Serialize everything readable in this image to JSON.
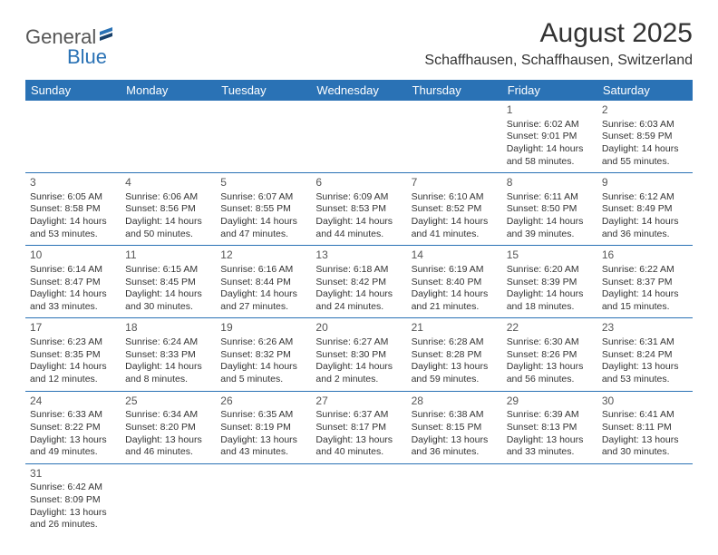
{
  "logo": {
    "text1": "General",
    "text2": "Blue"
  },
  "title": "August 2025",
  "subtitle": "Schaffhausen, Schaffhausen, Switzerland",
  "colors": {
    "header_bg": "#2a72b5",
    "header_text": "#ffffff",
    "border": "#2a72b5",
    "text": "#333333",
    "logo_accent": "#2a72b5",
    "logo_gray": "#555555",
    "background": "#ffffff"
  },
  "typography": {
    "title_fontsize": 30,
    "subtitle_fontsize": 16,
    "dayheader_fontsize": 13,
    "daynum_fontsize": 12,
    "cell_fontsize": 10.5
  },
  "day_headers": [
    "Sunday",
    "Monday",
    "Tuesday",
    "Wednesday",
    "Thursday",
    "Friday",
    "Saturday"
  ],
  "weeks": [
    [
      null,
      null,
      null,
      null,
      null,
      {
        "n": "1",
        "sr": "Sunrise: 6:02 AM",
        "ss": "Sunset: 9:01 PM",
        "dl": "Daylight: 14 hours and 58 minutes."
      },
      {
        "n": "2",
        "sr": "Sunrise: 6:03 AM",
        "ss": "Sunset: 8:59 PM",
        "dl": "Daylight: 14 hours and 55 minutes."
      }
    ],
    [
      {
        "n": "3",
        "sr": "Sunrise: 6:05 AM",
        "ss": "Sunset: 8:58 PM",
        "dl": "Daylight: 14 hours and 53 minutes."
      },
      {
        "n": "4",
        "sr": "Sunrise: 6:06 AM",
        "ss": "Sunset: 8:56 PM",
        "dl": "Daylight: 14 hours and 50 minutes."
      },
      {
        "n": "5",
        "sr": "Sunrise: 6:07 AM",
        "ss": "Sunset: 8:55 PM",
        "dl": "Daylight: 14 hours and 47 minutes."
      },
      {
        "n": "6",
        "sr": "Sunrise: 6:09 AM",
        "ss": "Sunset: 8:53 PM",
        "dl": "Daylight: 14 hours and 44 minutes."
      },
      {
        "n": "7",
        "sr": "Sunrise: 6:10 AM",
        "ss": "Sunset: 8:52 PM",
        "dl": "Daylight: 14 hours and 41 minutes."
      },
      {
        "n": "8",
        "sr": "Sunrise: 6:11 AM",
        "ss": "Sunset: 8:50 PM",
        "dl": "Daylight: 14 hours and 39 minutes."
      },
      {
        "n": "9",
        "sr": "Sunrise: 6:12 AM",
        "ss": "Sunset: 8:49 PM",
        "dl": "Daylight: 14 hours and 36 minutes."
      }
    ],
    [
      {
        "n": "10",
        "sr": "Sunrise: 6:14 AM",
        "ss": "Sunset: 8:47 PM",
        "dl": "Daylight: 14 hours and 33 minutes."
      },
      {
        "n": "11",
        "sr": "Sunrise: 6:15 AM",
        "ss": "Sunset: 8:45 PM",
        "dl": "Daylight: 14 hours and 30 minutes."
      },
      {
        "n": "12",
        "sr": "Sunrise: 6:16 AM",
        "ss": "Sunset: 8:44 PM",
        "dl": "Daylight: 14 hours and 27 minutes."
      },
      {
        "n": "13",
        "sr": "Sunrise: 6:18 AM",
        "ss": "Sunset: 8:42 PM",
        "dl": "Daylight: 14 hours and 24 minutes."
      },
      {
        "n": "14",
        "sr": "Sunrise: 6:19 AM",
        "ss": "Sunset: 8:40 PM",
        "dl": "Daylight: 14 hours and 21 minutes."
      },
      {
        "n": "15",
        "sr": "Sunrise: 6:20 AM",
        "ss": "Sunset: 8:39 PM",
        "dl": "Daylight: 14 hours and 18 minutes."
      },
      {
        "n": "16",
        "sr": "Sunrise: 6:22 AM",
        "ss": "Sunset: 8:37 PM",
        "dl": "Daylight: 14 hours and 15 minutes."
      }
    ],
    [
      {
        "n": "17",
        "sr": "Sunrise: 6:23 AM",
        "ss": "Sunset: 8:35 PM",
        "dl": "Daylight: 14 hours and 12 minutes."
      },
      {
        "n": "18",
        "sr": "Sunrise: 6:24 AM",
        "ss": "Sunset: 8:33 PM",
        "dl": "Daylight: 14 hours and 8 minutes."
      },
      {
        "n": "19",
        "sr": "Sunrise: 6:26 AM",
        "ss": "Sunset: 8:32 PM",
        "dl": "Daylight: 14 hours and 5 minutes."
      },
      {
        "n": "20",
        "sr": "Sunrise: 6:27 AM",
        "ss": "Sunset: 8:30 PM",
        "dl": "Daylight: 14 hours and 2 minutes."
      },
      {
        "n": "21",
        "sr": "Sunrise: 6:28 AM",
        "ss": "Sunset: 8:28 PM",
        "dl": "Daylight: 13 hours and 59 minutes."
      },
      {
        "n": "22",
        "sr": "Sunrise: 6:30 AM",
        "ss": "Sunset: 8:26 PM",
        "dl": "Daylight: 13 hours and 56 minutes."
      },
      {
        "n": "23",
        "sr": "Sunrise: 6:31 AM",
        "ss": "Sunset: 8:24 PM",
        "dl": "Daylight: 13 hours and 53 minutes."
      }
    ],
    [
      {
        "n": "24",
        "sr": "Sunrise: 6:33 AM",
        "ss": "Sunset: 8:22 PM",
        "dl": "Daylight: 13 hours and 49 minutes."
      },
      {
        "n": "25",
        "sr": "Sunrise: 6:34 AM",
        "ss": "Sunset: 8:20 PM",
        "dl": "Daylight: 13 hours and 46 minutes."
      },
      {
        "n": "26",
        "sr": "Sunrise: 6:35 AM",
        "ss": "Sunset: 8:19 PM",
        "dl": "Daylight: 13 hours and 43 minutes."
      },
      {
        "n": "27",
        "sr": "Sunrise: 6:37 AM",
        "ss": "Sunset: 8:17 PM",
        "dl": "Daylight: 13 hours and 40 minutes."
      },
      {
        "n": "28",
        "sr": "Sunrise: 6:38 AM",
        "ss": "Sunset: 8:15 PM",
        "dl": "Daylight: 13 hours and 36 minutes."
      },
      {
        "n": "29",
        "sr": "Sunrise: 6:39 AM",
        "ss": "Sunset: 8:13 PM",
        "dl": "Daylight: 13 hours and 33 minutes."
      },
      {
        "n": "30",
        "sr": "Sunrise: 6:41 AM",
        "ss": "Sunset: 8:11 PM",
        "dl": "Daylight: 13 hours and 30 minutes."
      }
    ],
    [
      {
        "n": "31",
        "sr": "Sunrise: 6:42 AM",
        "ss": "Sunset: 8:09 PM",
        "dl": "Daylight: 13 hours and 26 minutes."
      },
      null,
      null,
      null,
      null,
      null,
      null
    ]
  ]
}
